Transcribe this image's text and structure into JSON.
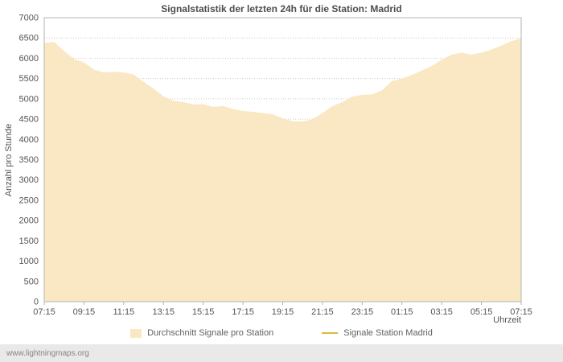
{
  "header": {
    "title": "Signalstatistik der letzten 24h für die Station: Madrid"
  },
  "axes": {
    "ylabel": "Anzahl pro Stunde",
    "xlabel": "Uhrzeit"
  },
  "legend": {
    "items": [
      {
        "label": "Durchschnitt Signale pro Station",
        "swatch": "area",
        "color": "#f9e8c3"
      },
      {
        "label": "Signale Station Madrid",
        "swatch": "line",
        "color": "#ddb93f"
      }
    ]
  },
  "footer": {
    "text": "www.lightningmaps.org"
  },
  "colors": {
    "area_fill": "#f9e8c3",
    "madrid_line": "#ddb93f",
    "grid": "#c8c8c8",
    "axis_text": "#545454",
    "footer_bg": "#e9e9e9"
  },
  "chart_data": {
    "type": "area",
    "title": "Signalstatistik der letzten 24h für die Station: Madrid",
    "xlabel": "Uhrzeit",
    "ylabel": "Anzahl pro Stunde",
    "ylim": [
      0,
      7000
    ],
    "y_tick_step": 500,
    "grid": true,
    "legend_position": "bottom",
    "x_start": "07:15",
    "x_interval_minutes": 30,
    "x_ticks": [
      "07:15",
      "09:15",
      "11:15",
      "13:15",
      "15:15",
      "17:15",
      "19:15",
      "21:15",
      "23:15",
      "01:15",
      "03:15",
      "05:15",
      "07:15"
    ],
    "series": [
      {
        "name": "Durchschnitt Signale pro Station",
        "type": "area",
        "color": "#f9e8c3",
        "values": [
          6380,
          6400,
          6180,
          5980,
          5900,
          5720,
          5650,
          5670,
          5650,
          5600,
          5420,
          5250,
          5060,
          4950,
          4920,
          4860,
          4870,
          4800,
          4820,
          4750,
          4700,
          4680,
          4650,
          4620,
          4520,
          4450,
          4440,
          4500,
          4650,
          4820,
          4920,
          5050,
          5100,
          5110,
          5210,
          5440,
          5500,
          5590,
          5700,
          5810,
          5960,
          6090,
          6140,
          6090,
          6140,
          6210,
          6310,
          6420,
          6490
        ]
      },
      {
        "name": "Signale Station Madrid",
        "type": "line",
        "color": "#ddb93f",
        "values": []
      }
    ]
  }
}
